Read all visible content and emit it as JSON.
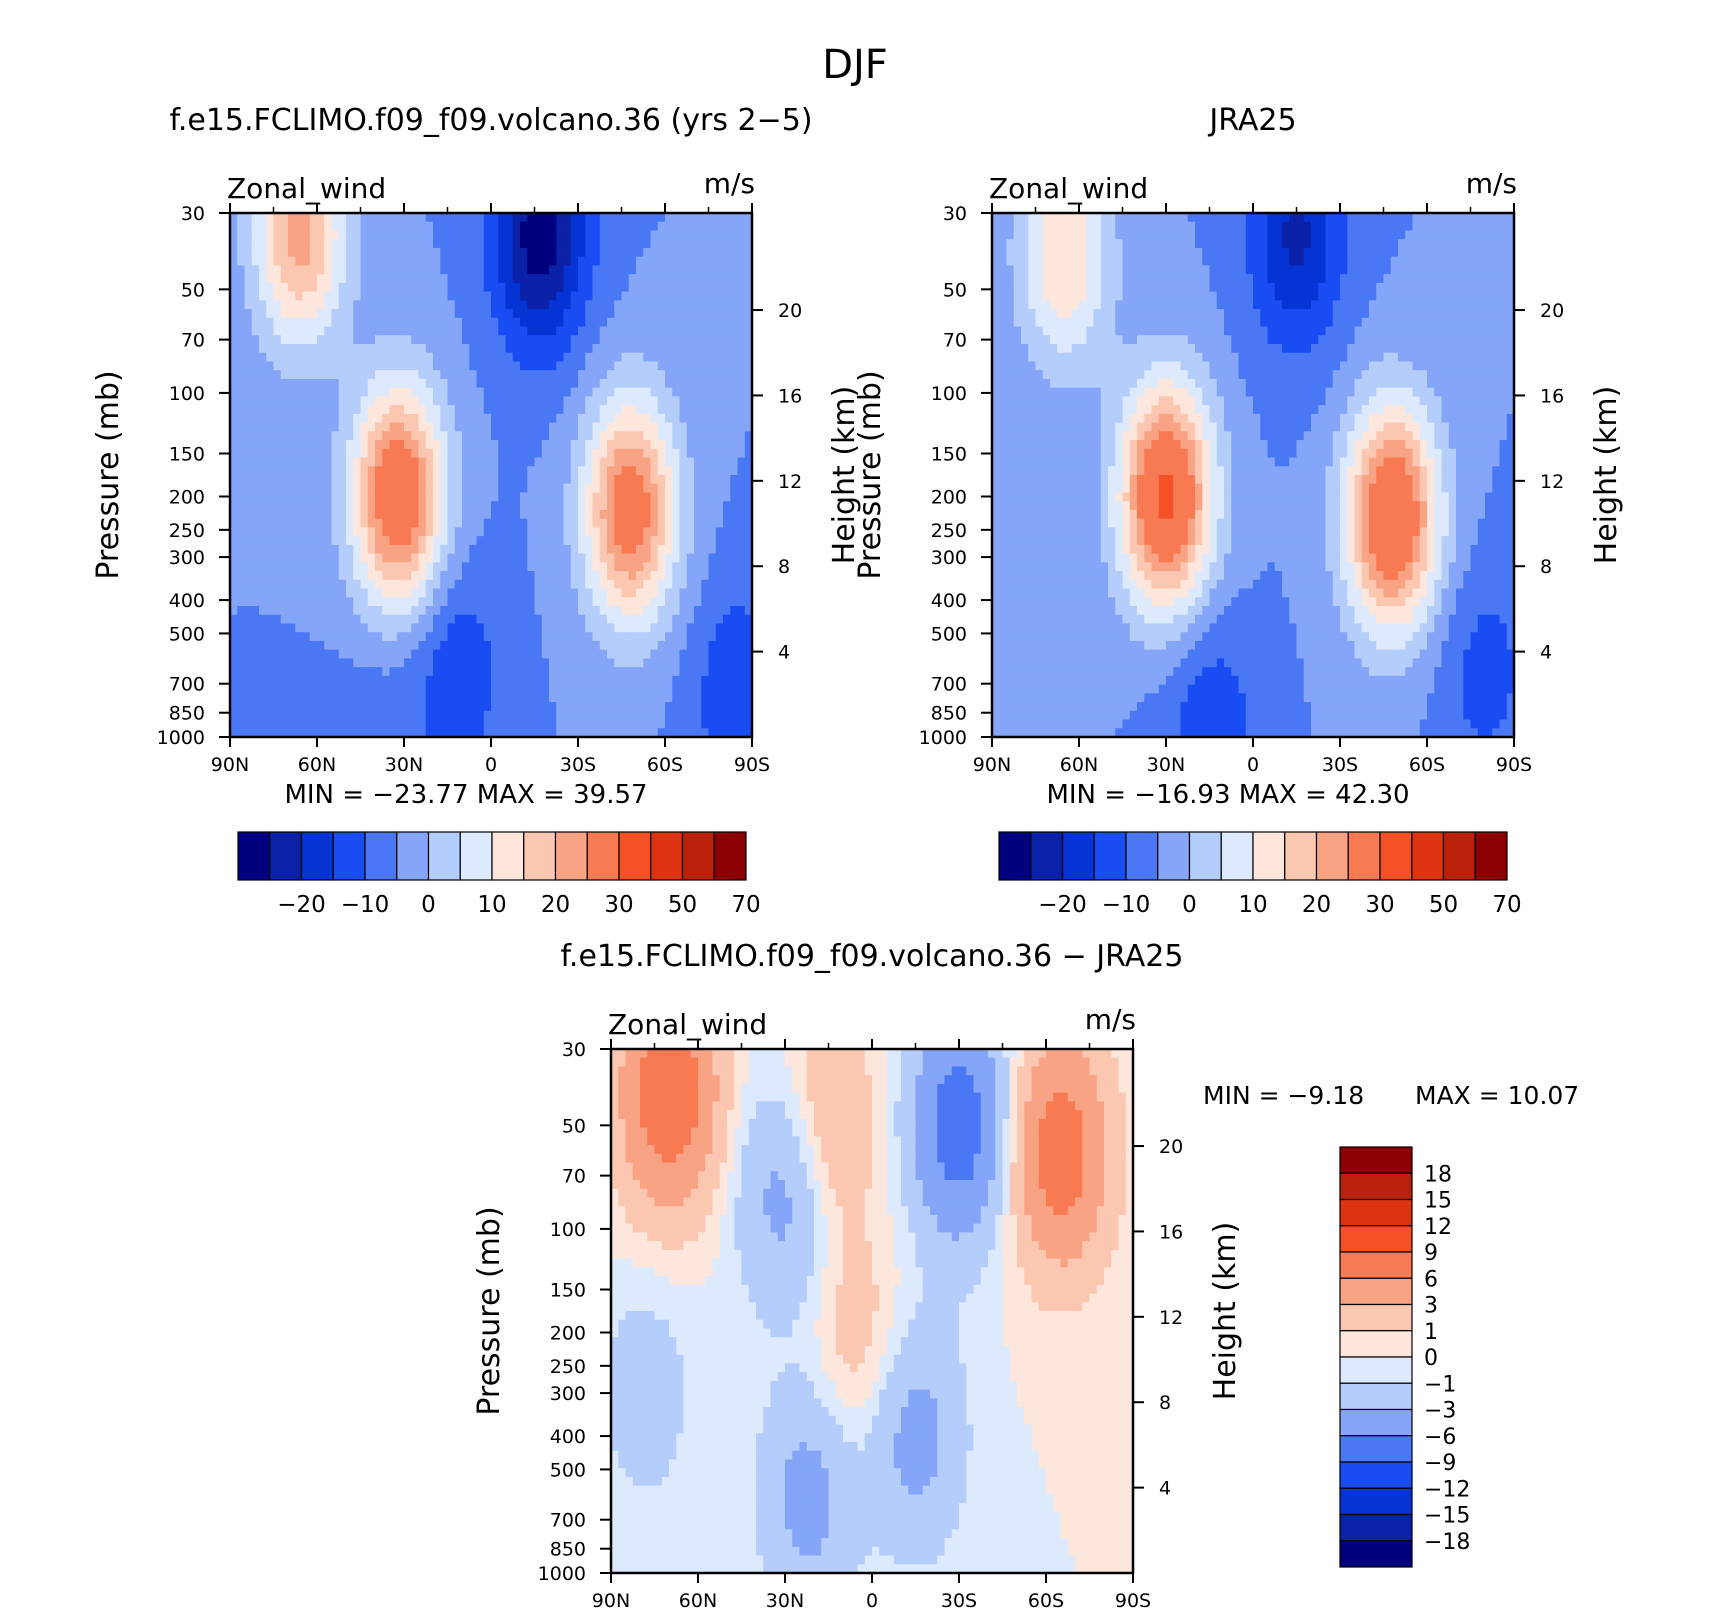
{
  "figure_title": "DJF",
  "chart_data": [
    {
      "type": "heatmap",
      "title": "f.e15.FCLIMO.f09_f09.volcano.36 (yrs 2−5)",
      "left_label": "Zonal_wind",
      "right_label": "m/s",
      "xlabel": "",
      "ylabel": "Pressure (mb)",
      "y2label": "Height (km)",
      "x_ticks": [
        "90N",
        "60N",
        "30N",
        "0",
        "30S",
        "60S",
        "90S"
      ],
      "y_ticks": [
        "30",
        "50",
        "70",
        "100",
        "150",
        "200",
        "250",
        "300",
        "400",
        "500",
        "700",
        "850",
        "1000"
      ],
      "y2_ticks": [
        "20",
        "16",
        "12",
        "8",
        "4"
      ],
      "stats": "MIN = −23.77   MAX =  39.57",
      "min": -23.77,
      "max": 39.57,
      "levels": [
        -25,
        -20,
        -15,
        -10,
        -5,
        0,
        5,
        10,
        15,
        20,
        25,
        30,
        40,
        50,
        60,
        70,
        80
      ],
      "colorbar_labels": [
        "−20",
        "−10",
        "0",
        "10",
        "20",
        "30",
        "50",
        "70"
      ],
      "features": [
        {
          "lat": 32,
          "p": 200,
          "value": 38
        },
        {
          "lat": -48,
          "p": 220,
          "value": 35
        },
        {
          "lat": 66,
          "p": 35,
          "value": 27
        },
        {
          "lat": -17,
          "p": 35,
          "value": -23
        },
        {
          "lat": 40,
          "p": 950,
          "value": -3
        },
        {
          "lat": 12,
          "p": 650,
          "value": -9
        },
        {
          "lat": -85,
          "p": 750,
          "value": -9
        }
      ]
    },
    {
      "type": "heatmap",
      "title": "JRA25",
      "left_label": "Zonal_wind",
      "right_label": "m/s",
      "xlabel": "",
      "ylabel": "Pressure (mb)",
      "y2label": "Height (km)",
      "x_ticks": [
        "90N",
        "60N",
        "30N",
        "0",
        "30S",
        "60S",
        "90S"
      ],
      "y_ticks": [
        "30",
        "50",
        "70",
        "100",
        "150",
        "200",
        "250",
        "300",
        "400",
        "500",
        "700",
        "850",
        "1000"
      ],
      "y2_ticks": [
        "20",
        "16",
        "12",
        "8",
        "4"
      ],
      "stats": "MIN = −16.93   MAX =  42.30",
      "min": -16.93,
      "max": 42.3,
      "levels": [
        -25,
        -20,
        -15,
        -10,
        -5,
        0,
        5,
        10,
        15,
        20,
        25,
        30,
        40,
        50,
        60,
        70,
        80
      ],
      "colorbar_labels": [
        "−20",
        "−10",
        "0",
        "10",
        "20",
        "30",
        "50",
        "70"
      ],
      "features": [
        {
          "lat": 30,
          "p": 200,
          "value": 42
        },
        {
          "lat": -48,
          "p": 230,
          "value": 40
        },
        {
          "lat": 65,
          "p": 40,
          "value": 20
        },
        {
          "lat": -15,
          "p": 35,
          "value": -16
        },
        {
          "lat": 15,
          "p": 920,
          "value": -9
        },
        {
          "lat": -80,
          "p": 650,
          "value": -7
        }
      ]
    },
    {
      "type": "heatmap",
      "title": "f.e15.FCLIMO.f09_f09.volcano.36 − JRA25",
      "left_label": "Zonal_wind",
      "right_label": "m/s",
      "xlabel": "",
      "ylabel": "Pressure (mb)",
      "y2label": "Height (km)",
      "x_ticks": [
        "90N",
        "60N",
        "30N",
        "0",
        "30S",
        "60S",
        "90S"
      ],
      "y_ticks": [
        "30",
        "50",
        "70",
        "100",
        "150",
        "200",
        "250",
        "300",
        "400",
        "500",
        "700",
        "850",
        "1000"
      ],
      "y2_ticks": [
        "20",
        "16",
        "12",
        "8",
        "4"
      ],
      "stats_min": "MIN =   −9.18",
      "stats_max": "MAX =   10.07",
      "min": -9.18,
      "max": 10.07,
      "levels": [
        -21,
        -18,
        -15,
        -12,
        -9,
        -6,
        -3,
        -1,
        0,
        1,
        3,
        6,
        9,
        12,
        15,
        18,
        21
      ],
      "colorbar_labels": [
        "18",
        "15",
        "12",
        "9",
        "6",
        "3",
        "1",
        "0",
        "−1",
        "−3",
        "−6",
        "−9",
        "−12",
        "−15",
        "−18"
      ],
      "features": [
        {
          "lat": 70,
          "p": 40,
          "value": 9
        },
        {
          "lat": -65,
          "p": 60,
          "value": 8
        },
        {
          "lat": 5,
          "p": 220,
          "value": 2
        },
        {
          "lat": -30,
          "p": 50,
          "value": -8
        },
        {
          "lat": 30,
          "p": 80,
          "value": -4
        },
        {
          "lat": 22,
          "p": 600,
          "value": -4
        },
        {
          "lat": 78,
          "p": 300,
          "value": -2
        },
        {
          "lat": -15,
          "p": 400,
          "value": -4
        },
        {
          "lat": 15,
          "p": 50,
          "value": 3
        }
      ]
    }
  ],
  "colors": {
    "scale": [
      "#00007f",
      "#0a21a8",
      "#0533d4",
      "#1a4cf4",
      "#4a78f5",
      "#85a6f8",
      "#b5cdfb",
      "#dde9fd",
      "#fde7dd",
      "#fbc7b0",
      "#f9a385",
      "#f87a52",
      "#f45226",
      "#dc3410",
      "#ba210b",
      "#8b0000"
    ]
  }
}
